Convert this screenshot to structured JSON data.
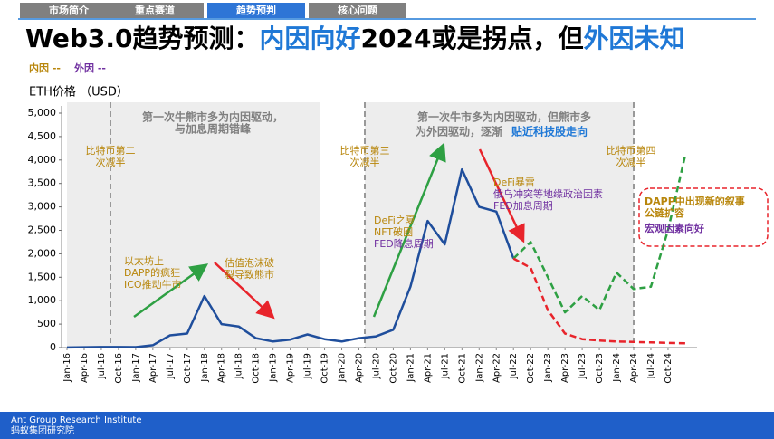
{
  "tabs": [
    {
      "text": "市场简介",
      "active": false
    },
    {
      "text": "重点赛道",
      "active": false
    },
    {
      "text": "趋势预判",
      "active": true
    },
    {
      "text": "核心问题",
      "active": false
    }
  ],
  "header": {
    "title": [
      {
        "text": "Web3.0趋势预测：",
        "color": "#000000"
      },
      {
        "text": "内因向好",
        "color": "#1f78d6"
      },
      {
        "text": "2024或是拐点，但",
        "color": "#000000"
      },
      {
        "text": "外因未知",
        "color": "#1f78d6"
      }
    ],
    "legend": [
      {
        "text": "内因 --",
        "color": "#b8860b"
      },
      {
        "text": "外因 --",
        "color": "#7030a0"
      }
    ]
  },
  "chart_data": {
    "type": "line",
    "y_label": "ETH价格 （USD）",
    "categories": [
      "Jan-16",
      "Apr-16",
      "Jul-16",
      "Oct-16",
      "Jan-17",
      "Apr-17",
      "Jul-17",
      "Oct-17",
      "Jan-18",
      "Apr-18",
      "Jul-18",
      "Oct-18",
      "Jan-19",
      "Apr-19",
      "Jul-19",
      "Oct-19",
      "Jan-20",
      "Apr-20",
      "Jul-20",
      "Oct-20",
      "Jan-21",
      "Apr-21",
      "Jul-21",
      "Oct-21",
      "Jan-22",
      "Apr-22",
      "Jul-22",
      "Oct-22",
      "Jan-23",
      "Apr-23",
      "Jul-23",
      "Oct-23",
      "Jan-24",
      "Apr-24",
      "Jul-24",
      "Oct-24",
      null
    ],
    "series": [
      {
        "color": "#1f4e9c",
        "dashed": false,
        "values": [
          1,
          8,
          12,
          12,
          10,
          50,
          260,
          300,
          1100,
          500,
          450,
          200,
          130,
          170,
          280,
          180,
          130,
          200,
          240,
          380,
          1300,
          2700,
          2200,
          3800,
          3000,
          2900,
          1900,
          null,
          null,
          null,
          null,
          null,
          null,
          null,
          null,
          null,
          null
        ]
      },
      {
        "color": "#2ea043",
        "dashed": true,
        "values": [
          null,
          null,
          null,
          null,
          null,
          null,
          null,
          null,
          null,
          null,
          null,
          null,
          null,
          null,
          null,
          null,
          null,
          null,
          null,
          null,
          null,
          null,
          null,
          null,
          null,
          null,
          1900,
          2250,
          1500,
          750,
          1100,
          800,
          1600,
          1250,
          1300,
          2500,
          4100
        ]
      },
      {
        "color": "#e8242b",
        "dashed": true,
        "values": [
          null,
          null,
          null,
          null,
          null,
          null,
          null,
          null,
          null,
          null,
          null,
          null,
          null,
          null,
          null,
          null,
          null,
          null,
          null,
          null,
          null,
          null,
          null,
          null,
          null,
          null,
          1900,
          1700,
          800,
          300,
          180,
          150,
          130,
          120,
          110,
          100,
          90
        ]
      }
    ],
    "ylim": [
      0,
      5000
    ],
    "yticks": [
      0,
      500,
      {
        "value": 1000,
        "label": "1,000"
      },
      {
        "value": 1500,
        "label": "1,500"
      },
      {
        "value": 2000,
        "label": "2,000"
      },
      {
        "value": 2500,
        "label": "2,500"
      },
      {
        "value": 3000,
        "label": "3,000"
      },
      {
        "value": 3500,
        "label": "3,500"
      },
      {
        "value": 4000,
        "label": "4,000"
      },
      {
        "value": 4500,
        "label": "4,500"
      },
      {
        "value": 5000,
        "label": "5,000"
      }
    ],
    "annotations": [
      {
        "lines": [
          "第一次牛熊市多为内因驱动，",
          "与加息周期错峰"
        ],
        "color": "#7f7f7f"
      },
      {
        "lines": [
          "第一次牛市多为内因驱动，但熊市多"
        ],
        "color": "#7f7f7f"
      },
      {
        "lines": [
          "为外因驱动，逐渐"
        ],
        "color": "#7f7f7f"
      },
      {
        "lines": [
          "贴近科技股走向"
        ],
        "color": "#1f78d6"
      },
      {
        "lines": [
          "比特币第二",
          "次减半"
        ],
        "color": "#b8860b"
      },
      {
        "lines": [
          "比特币第三",
          "次减半"
        ],
        "color": "#b8860b"
      },
      {
        "lines": [
          "比特币第四",
          "次减半"
        ],
        "color": "#b8860b"
      },
      {
        "lines": [
          "以太坊上",
          "DAPP的疯狂",
          "ICO推动牛市"
        ],
        "color": "#b8860b"
      },
      {
        "lines": [
          "估值泡沫破",
          "裂导致熊市"
        ],
        "color": "#b8860b"
      },
      {
        "lines": [
          "DeFi之夏",
          "NFT破圈"
        ],
        "color": "#b8860b"
      },
      {
        "lines": [
          "FED降息周期"
        ],
        "color": "#7030a0"
      },
      {
        "lines": [
          "DeFi暴雷"
        ],
        "color": "#b8860b"
      },
      {
        "lines": [
          "俄乌冲突等地缘政治因素",
          "FED加息周期"
        ],
        "color": "#7030a0"
      },
      {
        "lines": [
          "DAPP中出现新的叙事",
          "公链扩容"
        ],
        "color": "#b8860b"
      },
      {
        "lines": [
          "宏观因素向好"
        ],
        "color": "#7030a0"
      }
    ]
  },
  "footer": {
    "org_en": "Ant Group Research Institute",
    "org_cn": "蚂蚁集团研究院"
  }
}
